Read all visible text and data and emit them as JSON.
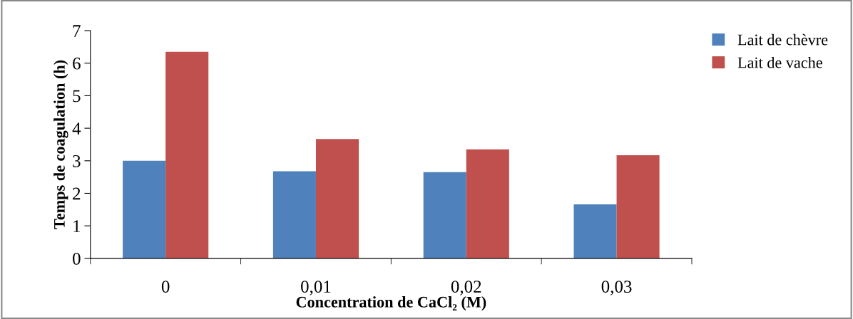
{
  "chart_data": {
    "type": "bar",
    "xlabel": "Concentration de CaCl₂ (M)",
    "ylabel": "Temps de coagulation (h)",
    "categories": [
      "0",
      "0,01",
      "0,02",
      "0,03"
    ],
    "series": [
      {
        "name": "Lait de chèvre",
        "color": "#4f81bd",
        "values": [
          3.0,
          2.68,
          2.65,
          1.66
        ]
      },
      {
        "name": "Lait de vache",
        "color": "#c0504d",
        "values": [
          6.35,
          3.67,
          3.35,
          3.17
        ]
      }
    ],
    "ylim": [
      0,
      7
    ],
    "yticks": [
      0,
      1,
      2,
      3,
      4,
      5,
      6,
      7
    ],
    "grid": false,
    "legend": "top right"
  }
}
